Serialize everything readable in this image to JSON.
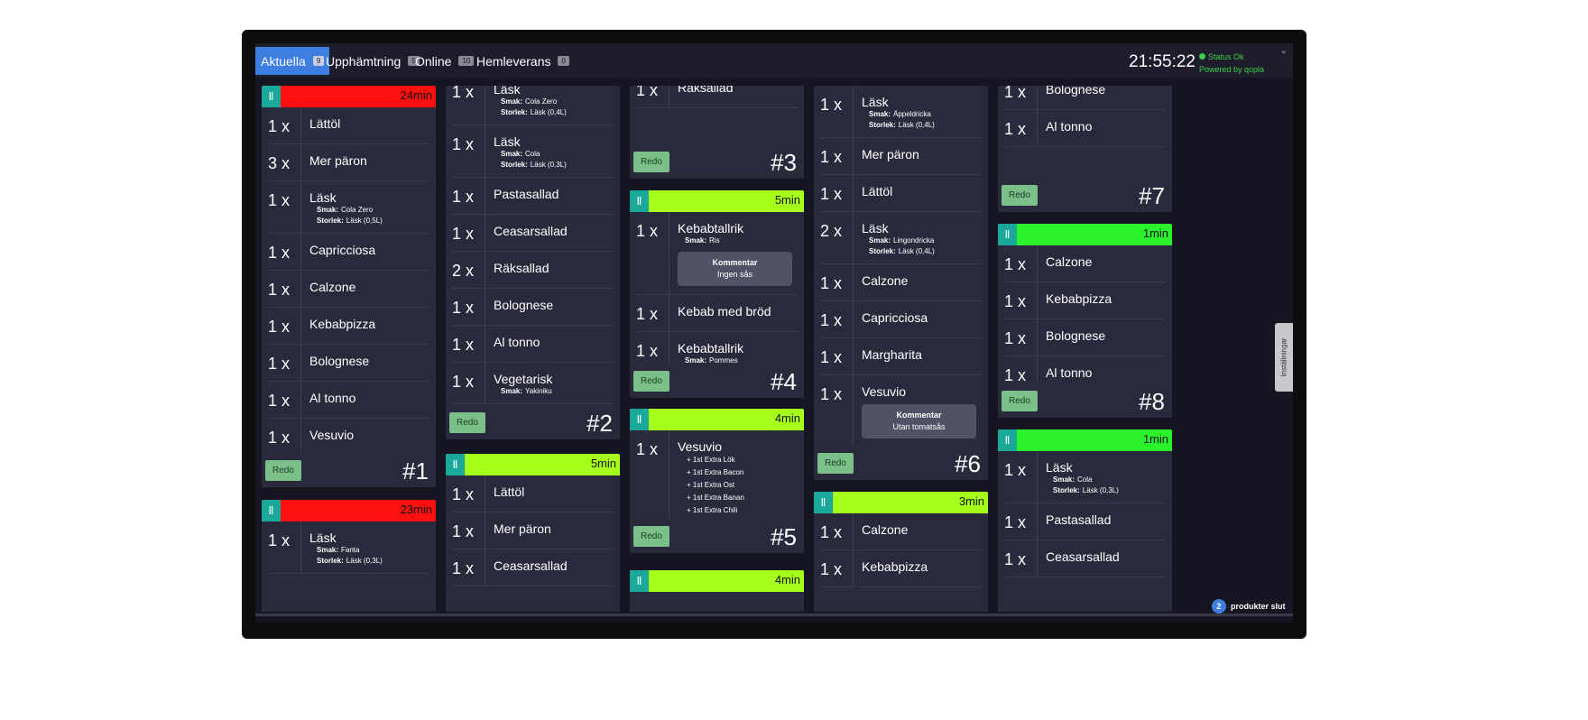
{
  "tabs": [
    {
      "label": "Aktuella",
      "count": "9"
    },
    {
      "label": "Upphämtning",
      "count": "5"
    },
    {
      "label": "Online",
      "count": "10"
    },
    {
      "label": "Hemleverans",
      "count": "0"
    }
  ],
  "clock": "21:55:22",
  "status": {
    "text": "Status Ok",
    "powered": "Powered by qopla"
  },
  "settings_label": "Inställningar",
  "redo_label": "Redo",
  "comment_title": "Kommentar",
  "sold_out": {
    "count": "2",
    "label": "produkter slut"
  },
  "colors": {
    "red": "#ff1010",
    "lime": "#a6ff1a",
    "green": "#2cf22c",
    "teal": "#1aa89a",
    "accent": "#3e7ee0"
  },
  "cards": [
    {
      "time": "24min",
      "number": "#1",
      "items": [
        {
          "qty": "1 x",
          "name": "Lättöl"
        },
        {
          "qty": "3 x",
          "name": "Mer päron"
        },
        {
          "qty": "1 x",
          "name": "Läsk",
          "mods": [
            {
              "k": "Smak:",
              "v": "Cola Zero"
            },
            {
              "k": "Storlek:",
              "v": "Läsk (0,5L)"
            }
          ]
        },
        {
          "qty": "1 x",
          "name": "Capricciosa"
        },
        {
          "qty": "1 x",
          "name": "Calzone"
        },
        {
          "qty": "1 x",
          "name": "Kebabpizza"
        },
        {
          "qty": "1 x",
          "name": "Bolognese"
        },
        {
          "qty": "1 x",
          "name": "Al tonno"
        },
        {
          "qty": "1 x",
          "name": "Vesuvio"
        }
      ]
    },
    {
      "time": "23min",
      "number": "",
      "items": [
        {
          "qty": "1 x",
          "name": "Läsk",
          "mods": [
            {
              "k": "Smak:",
              "v": "Fanta"
            },
            {
              "k": "Storlek:",
              "v": "Läsk (0,3L)"
            }
          ]
        }
      ]
    },
    {
      "time": "",
      "number": "#2",
      "items": [
        {
          "qty": "1 x",
          "name": "Läsk",
          "mods": [
            {
              "k": "Smak:",
              "v": "Cola Zero"
            },
            {
              "k": "Storlek:",
              "v": "Läsk (0,4L)"
            }
          ]
        },
        {
          "qty": "1 x",
          "name": "Läsk",
          "mods": [
            {
              "k": "Smak:",
              "v": "Cola"
            },
            {
              "k": "Storlek:",
              "v": "Läsk (0,3L)"
            }
          ]
        },
        {
          "qty": "1 x",
          "name": "Pastasallad"
        },
        {
          "qty": "1 x",
          "name": "Ceasarsallad"
        },
        {
          "qty": "2 x",
          "name": "Räksallad"
        },
        {
          "qty": "1 x",
          "name": "Bolognese"
        },
        {
          "qty": "1 x",
          "name": "Al tonno"
        },
        {
          "qty": "1 x",
          "name": "Vegetarisk",
          "mods": [
            {
              "k": "Smak:",
              "v": "Yakiniku"
            }
          ]
        }
      ]
    },
    {
      "time": "5min",
      "number": "",
      "items": [
        {
          "qty": "1 x",
          "name": "Lättöl"
        },
        {
          "qty": "1 x",
          "name": "Mer päron"
        },
        {
          "qty": "1 x",
          "name": "Ceasarsallad"
        }
      ]
    },
    {
      "time": "",
      "number": "#3",
      "items": [
        {
          "qty": "1 x",
          "name": "Räksallad"
        }
      ]
    },
    {
      "time": "5min",
      "number": "#4",
      "items": [
        {
          "qty": "1 x",
          "name": "Kebabtallrik",
          "mods": [
            {
              "k": "Smak:",
              "v": "Ris"
            }
          ],
          "comment": "Ingen sås"
        },
        {
          "qty": "1 x",
          "name": "Kebab med bröd"
        },
        {
          "qty": "1 x",
          "name": "Kebabtallrik",
          "mods": [
            {
              "k": "Smak:",
              "v": "Pommes"
            }
          ]
        }
      ]
    },
    {
      "time": "4min",
      "number": "#5",
      "items": [
        {
          "qty": "1 x",
          "name": "Vesuvio",
          "addons": [
            "+ 1st Extra Lök",
            "+ 1st Extra Bacon",
            "+ 1st Extra Ost",
            "+ 1st Extra Banan",
            "+ 1st Extra Chili"
          ]
        }
      ]
    },
    {
      "time": "4min",
      "number": "",
      "items": []
    },
    {
      "time": "",
      "number": "#6",
      "items": [
        {
          "qty": "1 x",
          "name": "Läsk",
          "mods": [
            {
              "k": "Smak:",
              "v": "Äppeldricka"
            },
            {
              "k": "Storlek:",
              "v": "Läsk (0,4L)"
            }
          ]
        },
        {
          "qty": "1 x",
          "name": "Mer päron"
        },
        {
          "qty": "1 x",
          "name": "Lättöl"
        },
        {
          "qty": "2 x",
          "name": "Läsk",
          "mods": [
            {
              "k": "Smak:",
              "v": "Lingondricka"
            },
            {
              "k": "Storlek:",
              "v": "Läsk (0,4L)"
            }
          ]
        },
        {
          "qty": "1 x",
          "name": "Calzone"
        },
        {
          "qty": "1 x",
          "name": "Capricciosa"
        },
        {
          "qty": "1 x",
          "name": "Margharita"
        },
        {
          "qty": "1 x",
          "name": "Vesuvio",
          "comment": "Utan tomatsås"
        }
      ]
    },
    {
      "time": "3min",
      "number": "",
      "items": [
        {
          "qty": "1 x",
          "name": "Calzone"
        },
        {
          "qty": "1 x",
          "name": "Kebabpizza"
        }
      ]
    },
    {
      "time": "",
      "number": "#7",
      "items": [
        {
          "qty": "1 x",
          "name": "Bolognese"
        },
        {
          "qty": "1 x",
          "name": "Al tonno"
        }
      ]
    },
    {
      "time": "1min",
      "number": "#8",
      "items": [
        {
          "qty": "1 x",
          "name": "Calzone"
        },
        {
          "qty": "1 x",
          "name": "Kebabpizza"
        },
        {
          "qty": "1 x",
          "name": "Bolognese"
        },
        {
          "qty": "1 x",
          "name": "Al tonno"
        }
      ]
    },
    {
      "time": "1min",
      "number": "",
      "items": [
        {
          "qty": "1 x",
          "name": "Läsk",
          "mods": [
            {
              "k": "Smak:",
              "v": "Cola"
            },
            {
              "k": "Storlek:",
              "v": "Läsk (0,3L)"
            }
          ]
        },
        {
          "qty": "1 x",
          "name": "Pastasallad"
        },
        {
          "qty": "1 x",
          "name": "Ceasarsallad"
        }
      ]
    }
  ]
}
